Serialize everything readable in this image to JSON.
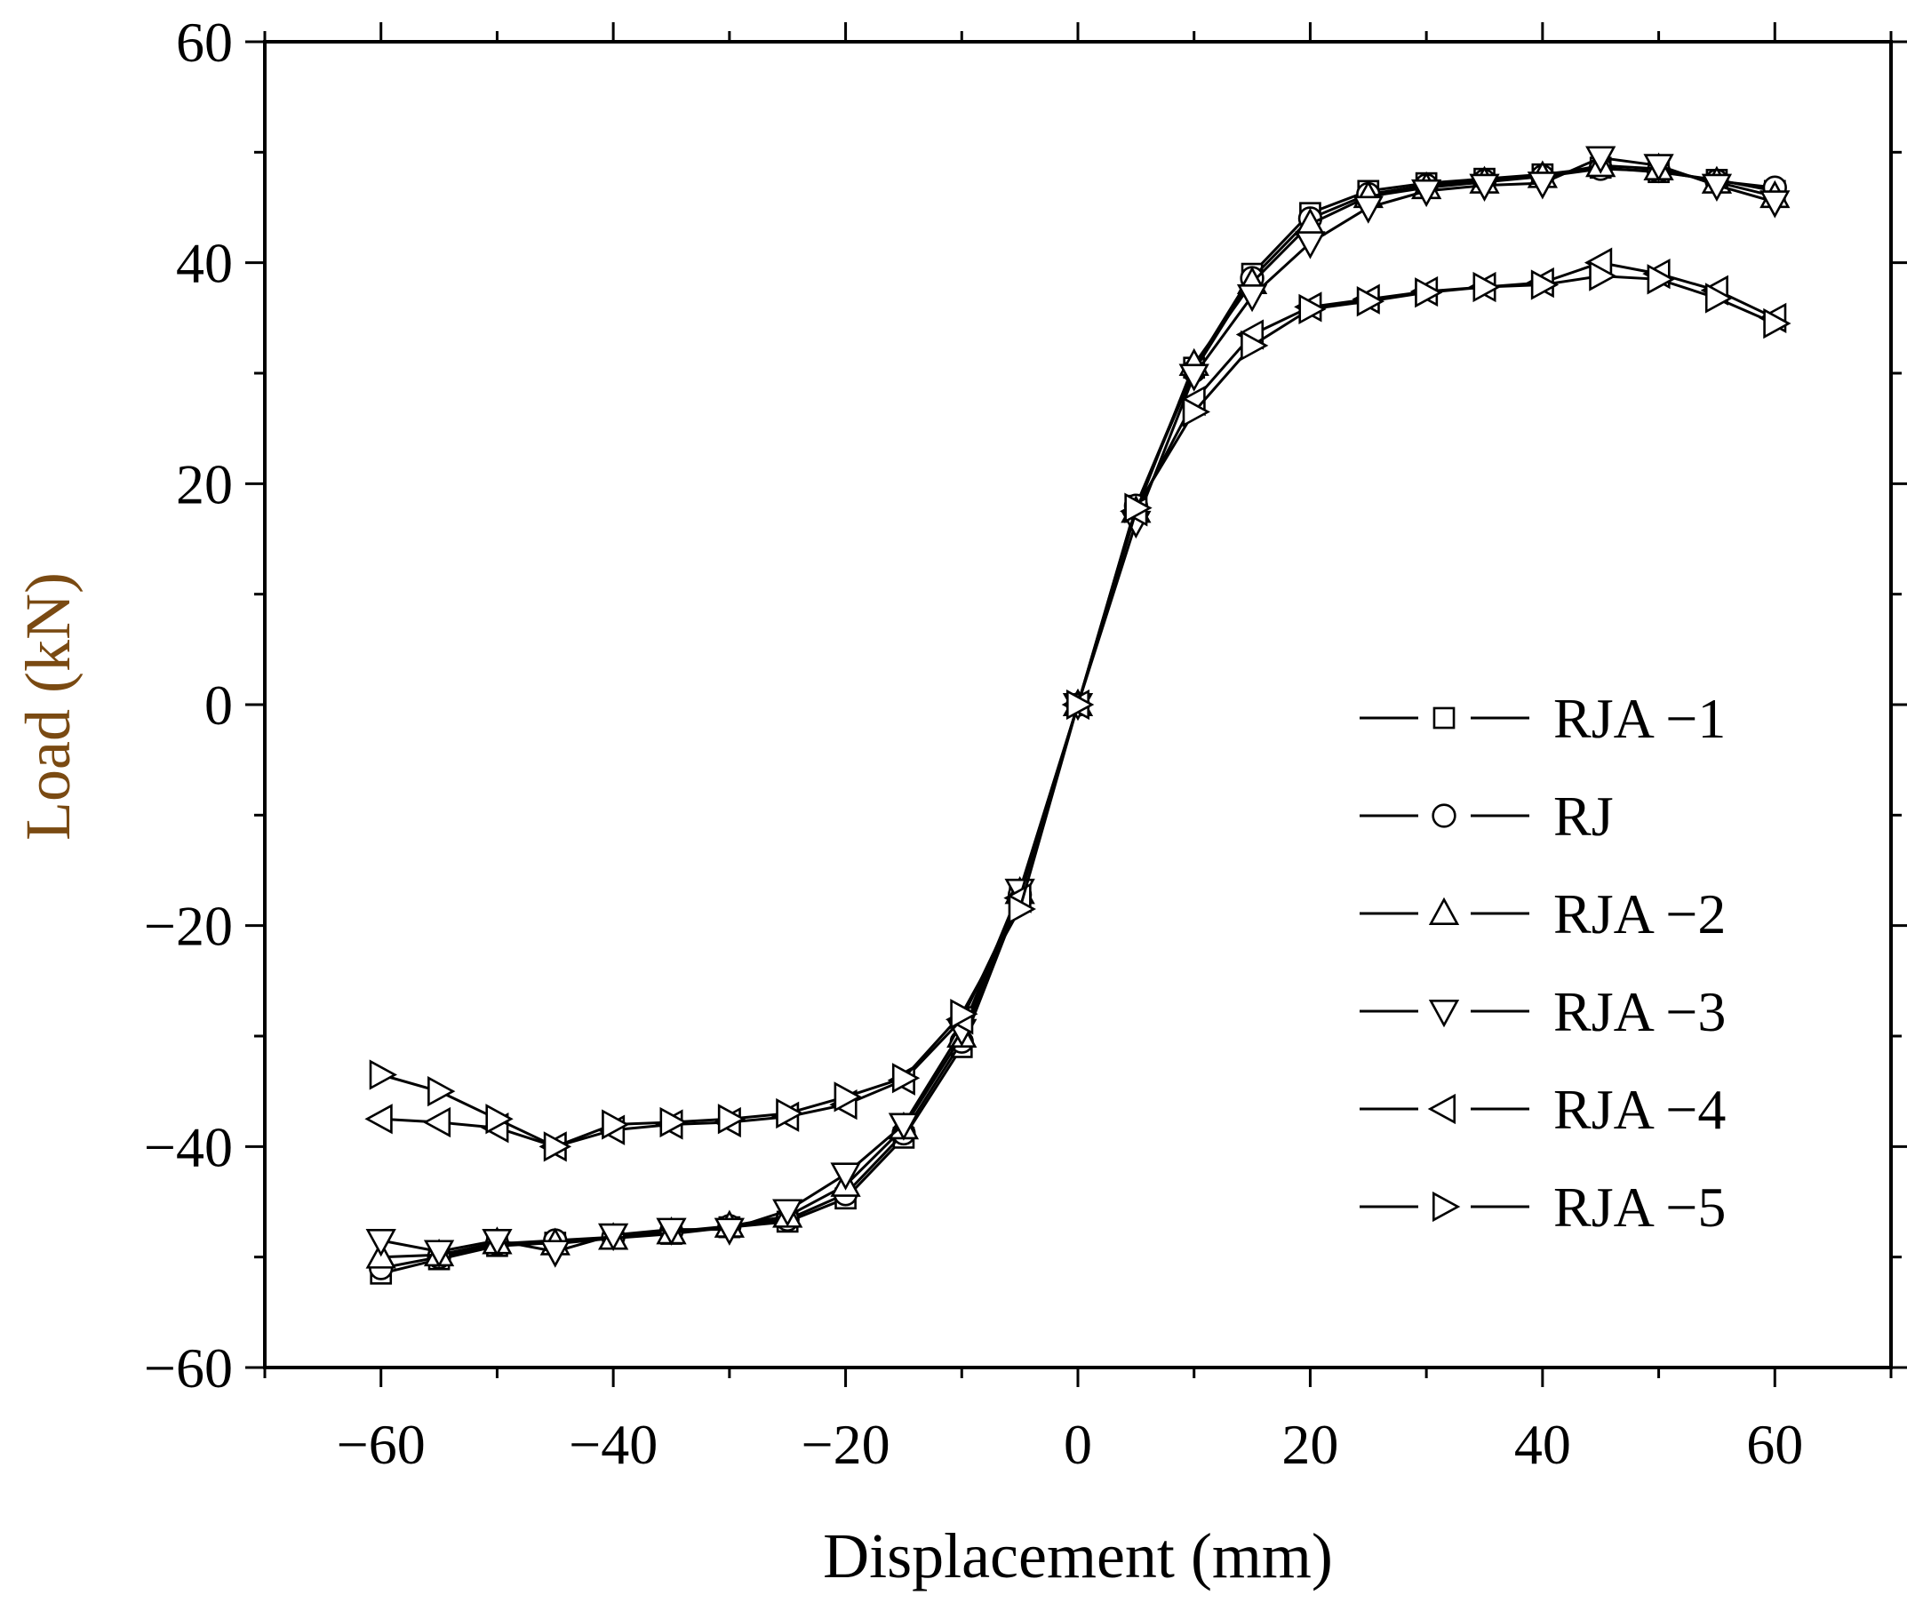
{
  "chart_data": {
    "type": "line",
    "title": "",
    "xlabel": "Displacement (mm)",
    "ylabel": "Load (kN)",
    "xlim": [
      -70,
      70
    ],
    "ylim": [
      -60,
      60
    ],
    "x_ticks": [
      -60,
      -40,
      -20,
      0,
      20,
      40,
      60
    ],
    "y_ticks": [
      60,
      40,
      20,
      0,
      -20,
      -40,
      -60
    ],
    "x_tick_labels": [
      "−60",
      "−40",
      "−20",
      "0",
      "20",
      "40",
      "60"
    ],
    "y_tick_labels": [
      "60",
      "40",
      "20",
      "0",
      "−20",
      "−40",
      "−60"
    ],
    "grid": false,
    "legend_position": "center-right",
    "ylabel_color": "#7a4a12",
    "x": [
      -60,
      -55,
      -50,
      -45,
      -40,
      -35,
      -30,
      -25,
      -20,
      -15,
      -10,
      -5,
      0,
      5,
      10,
      15,
      20,
      25,
      30,
      35,
      40,
      45,
      50,
      55,
      60
    ],
    "series": [
      {
        "name": "RJA −1",
        "marker": "square",
        "values": [
          -51.5,
          -50.2,
          -49.0,
          -48.7,
          -48.3,
          -47.9,
          -47.3,
          -46.8,
          -44.7,
          -39.2,
          -31.0,
          -17.5,
          0,
          18.0,
          30.5,
          39.0,
          44.5,
          46.5,
          47.2,
          47.6,
          48.0,
          48.6,
          48.2,
          47.5,
          46.5
        ]
      },
      {
        "name": "RJ",
        "marker": "circle",
        "values": [
          -51.0,
          -50.0,
          -48.8,
          -48.5,
          -48.2,
          -47.7,
          -47.2,
          -46.6,
          -44.3,
          -38.8,
          -30.5,
          -17.2,
          0,
          18.0,
          30.2,
          38.6,
          44.0,
          46.2,
          47.0,
          47.4,
          47.8,
          48.5,
          48.3,
          47.4,
          46.8
        ]
      },
      {
        "name": "RJA −2",
        "marker": "triangle-up",
        "values": [
          -50.0,
          -49.8,
          -48.7,
          -48.8,
          -48.3,
          -47.8,
          -47.2,
          -46.3,
          -43.5,
          -38.3,
          -30.0,
          -17.0,
          0,
          17.5,
          30.8,
          38.2,
          43.5,
          46.0,
          46.8,
          47.3,
          47.8,
          48.8,
          48.5,
          47.3,
          46.0
        ]
      },
      {
        "name": "RJA −3",
        "marker": "triangle-down",
        "values": [
          -48.5,
          -49.5,
          -48.5,
          -49.5,
          -48.0,
          -47.5,
          -47.5,
          -45.8,
          -42.5,
          -38.0,
          -29.5,
          -16.8,
          0,
          16.5,
          29.8,
          37.0,
          41.8,
          45.0,
          46.5,
          47.0,
          47.2,
          49.5,
          48.8,
          47.0,
          45.5
        ]
      },
      {
        "name": "RJA −4",
        "marker": "triangle-left",
        "values": [
          -37.5,
          -37.8,
          -38.3,
          -40.0,
          -38.5,
          -38.0,
          -37.8,
          -37.3,
          -36.2,
          -34.0,
          -28.5,
          -17.5,
          0,
          17.5,
          27.5,
          33.5,
          36.0,
          36.7,
          37.4,
          37.8,
          38.2,
          40.0,
          39.0,
          37.5,
          35.0
        ]
      },
      {
        "name": "RJA −5",
        "marker": "triangle-right",
        "values": [
          -33.5,
          -35.0,
          -37.5,
          -40.0,
          -38.0,
          -37.8,
          -37.5,
          -37.0,
          -35.5,
          -33.8,
          -28.0,
          -18.5,
          0,
          17.8,
          26.5,
          32.5,
          35.8,
          36.5,
          37.3,
          37.8,
          38.0,
          38.8,
          38.5,
          36.8,
          34.5
        ]
      }
    ]
  }
}
